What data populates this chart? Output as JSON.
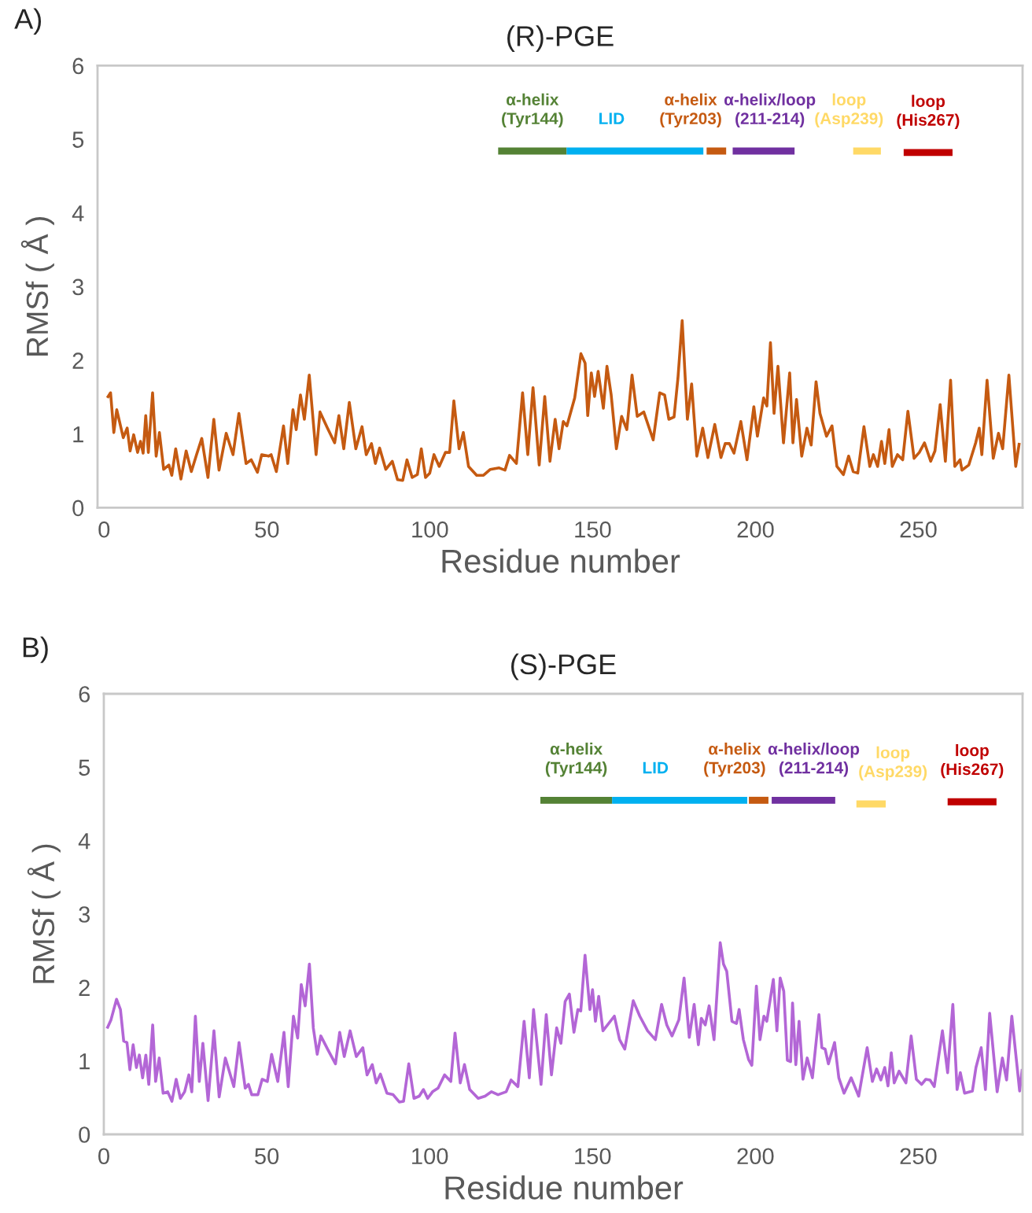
{
  "chart_data": [
    {
      "type": "line",
      "title": "(R)-PGE",
      "xlabel": "Residue number",
      "ylabel": "RMSf ( Å )",
      "annotations": [
        "A)"
      ],
      "xlim": [
        -2,
        282
      ],
      "ylim": [
        0,
        6
      ],
      "xticks": [
        0,
        50,
        100,
        150,
        200,
        250
      ],
      "yticks": [
        0,
        1,
        2,
        3,
        4,
        5,
        6
      ],
      "grid": false,
      "series": [
        {
          "color": "#c55a11",
          "x": [
            1,
            2,
            3,
            3.9,
            5.9,
            7.1,
            8.0,
            9.1,
            10.3,
            11.2,
            12.0,
            12.8,
            13.6,
            14.9,
            16.0,
            17.0,
            18.3,
            19.9,
            20.8,
            22.0,
            23.6,
            25.2,
            26.8,
            28.4,
            30.0,
            31.9,
            33.7,
            35.3,
            37.5,
            39.6,
            41.4,
            43.6,
            45.2,
            47.1,
            48.4,
            50.5,
            51.3,
            52.9,
            55.1,
            56.4,
            58.0,
            59.0,
            60.3,
            61.5,
            63.0,
            65.1,
            66.3,
            68.6,
            70.8,
            72.1,
            73.6,
            75.3,
            77.3,
            79.2,
            80.5,
            82.1,
            83.3,
            84.6,
            86.5,
            88.5,
            90.1,
            91.7,
            93.0,
            94.6,
            96.2,
            97.4,
            98.7,
            100.0,
            101.3,
            102.9,
            104.8,
            106.1,
            107.4,
            109.0,
            110.3,
            111.9,
            114.4,
            116.5,
            118.6,
            121.3,
            123.1,
            124.5,
            126.6,
            128.5,
            130.1,
            131.7,
            133.6,
            135.3,
            136.9,
            138.5,
            139.7,
            141.0,
            142.1,
            144.5,
            146.4,
            147.7,
            148.5,
            149.6,
            150.6,
            151.7,
            153.3,
            154.4,
            155.7,
            157.3,
            158.9,
            160.5,
            162.1,
            163.7,
            165.7,
            168.6,
            170.6,
            172.1,
            173.4,
            175.0,
            176.2,
            177.5,
            179.1,
            180.4,
            182.0,
            183.8,
            185.4,
            187.5,
            189.4,
            190.7,
            192.0,
            193.4,
            195.5,
            197.4,
            199.5,
            200.6,
            202.5,
            203.5,
            204.6,
            205.7,
            206.9,
            208.6,
            210.5,
            211.5,
            212.6,
            214.2,
            215.8,
            217.1,
            218.6,
            219.8,
            221.8,
            223.5,
            225.0,
            227.0,
            228.6,
            230.0,
            231.4,
            233.3,
            235.1,
            236.2,
            237.5,
            238.7,
            239.7,
            241.0,
            242.0,
            243.6,
            245.2,
            246.8,
            248.7,
            250.3,
            251.9,
            253.8,
            255.1,
            256.7,
            258.3,
            259.9,
            261.2,
            262.8,
            263.4,
            265.5,
            267.6,
            268.7,
            269.5,
            271.1,
            273.0,
            274.6,
            275.9,
            277.8,
            279.9,
            281.0
          ],
          "values": [
            1.49,
            1.56,
            1.02,
            1.33,
            0.95,
            1.08,
            0.77,
            0.99,
            0.75,
            0.9,
            0.74,
            1.25,
            0.75,
            1.56,
            0.7,
            1.02,
            0.52,
            0.58,
            0.44,
            0.8,
            0.39,
            0.77,
            0.49,
            0.72,
            0.94,
            0.41,
            1.2,
            0.51,
            1.01,
            0.72,
            1.28,
            0.6,
            0.65,
            0.48,
            0.72,
            0.7,
            0.72,
            0.49,
            1.11,
            0.6,
            1.33,
            1.06,
            1.53,
            1.2,
            1.8,
            0.72,
            1.3,
            1.08,
            0.88,
            1.25,
            0.8,
            1.43,
            0.8,
            1.1,
            0.72,
            0.87,
            0.6,
            0.81,
            0.52,
            0.63,
            0.38,
            0.37,
            0.65,
            0.41,
            0.45,
            0.8,
            0.41,
            0.47,
            0.72,
            0.56,
            0.75,
            0.75,
            1.45,
            0.8,
            1.02,
            0.56,
            0.44,
            0.44,
            0.52,
            0.54,
            0.51,
            0.71,
            0.6,
            1.56,
            0.72,
            1.63,
            0.58,
            1.51,
            0.63,
            1.2,
            0.8,
            1.17,
            1.11,
            1.49,
            2.09,
            1.96,
            1.25,
            1.83,
            1.51,
            1.85,
            1.35,
            1.92,
            1.53,
            0.8,
            1.24,
            1.06,
            1.8,
            1.24,
            1.3,
            0.92,
            1.56,
            1.53,
            1.2,
            1.23,
            1.76,
            2.54,
            1.2,
            1.68,
            0.7,
            1.08,
            0.68,
            1.13,
            0.68,
            0.87,
            0.87,
            0.74,
            1.17,
            0.65,
            1.37,
            0.97,
            1.49,
            1.38,
            2.24,
            1.28,
            1.92,
            0.88,
            1.83,
            0.88,
            1.47,
            0.7,
            1.08,
            0.85,
            1.71,
            1.28,
            0.97,
            1.11,
            0.56,
            0.45,
            0.7,
            0.49,
            0.47,
            1.1,
            0.56,
            0.72,
            0.56,
            0.9,
            0.6,
            1.06,
            0.56,
            0.72,
            0.65,
            1.31,
            0.67,
            0.75,
            0.88,
            0.63,
            0.77,
            1.4,
            0.63,
            1.73,
            0.56,
            0.65,
            0.51,
            0.58,
            0.88,
            1.08,
            0.72,
            1.73,
            0.67,
            1.01,
            0.8,
            1.8,
            0.56,
            0.88
          ]
        },
        {
          "name": "α-helix\n(Tyr144)",
          "color": "#548235",
          "x": [
            121,
            142
          ],
          "values": [
            4.84,
            4.84
          ]
        },
        {
          "name": "LID",
          "color": "#00b0f0",
          "x": [
            142,
            184
          ],
          "values": [
            4.84,
            4.84
          ]
        },
        {
          "name": "α-helix\n(Tyr203)",
          "color": "#c55a11",
          "x": [
            185,
            191
          ],
          "values": [
            4.84,
            4.84
          ]
        },
        {
          "name": "α-helix/loop\n(211-214)",
          "color": "#7030a0",
          "x": [
            193,
            212
          ],
          "values": [
            4.84,
            4.84
          ]
        },
        {
          "name": "loop\n(Asp239)",
          "color": "#ffd966",
          "x": [
            230,
            238.5
          ],
          "values": [
            4.84,
            4.84
          ]
        },
        {
          "name": "loop\n(His267)",
          "color": "#c00000",
          "x": [
            245.5,
            260.5
          ],
          "values": [
            4.82,
            4.82
          ]
        }
      ]
    },
    {
      "type": "line",
      "title": "(S)-PGE",
      "xlabel": "Residue number",
      "ylabel": "RMSf ( Å )",
      "annotations": [
        "B)"
      ],
      "xlim": [
        0,
        282
      ],
      "ylim": [
        0,
        6
      ],
      "xticks": [
        0,
        50,
        100,
        150,
        200,
        250
      ],
      "yticks": [
        0,
        1,
        2,
        3,
        4,
        5,
        6
      ],
      "grid": false,
      "series": [
        {
          "color": "#b366d6",
          "x": [
            1,
            2.2,
            3.9,
            5.1,
            6.1,
            7.1,
            8.0,
            9.0,
            10.0,
            10.9,
            11.9,
            12.9,
            13.8,
            15.0,
            15.9,
            17.0,
            18.2,
            19.6,
            20.9,
            22.2,
            23.5,
            24.8,
            26.1,
            27.0,
            28.1,
            29.3,
            30.4,
            32.0,
            33.8,
            35.4,
            37.3,
            39.9,
            41.5,
            43.4,
            44.4,
            45.4,
            47.3,
            48.6,
            50.2,
            51.5,
            53.4,
            55.3,
            56.6,
            58.2,
            59.5,
            60.6,
            61.8,
            63.1,
            64.3,
            65.5,
            66.6,
            68.8,
            71.1,
            72.4,
            73.8,
            75.6,
            77.5,
            79.5,
            80.8,
            82.4,
            83.6,
            84.9,
            86.9,
            88.8,
            90.7,
            92.0,
            93.6,
            95.2,
            96.8,
            98.1,
            99.4,
            100.9,
            102.6,
            104.6,
            106.5,
            107.8,
            109.4,
            110.7,
            112.3,
            114.9,
            117.0,
            119.0,
            121.0,
            123.5,
            125.0,
            127.1,
            129.0,
            130.6,
            131.9,
            134.2,
            135.8,
            137.4,
            139.0,
            140.3,
            141.6,
            142.9,
            144.3,
            145.5,
            146.4,
            147.7,
            149.2,
            150.0,
            150.9,
            151.9,
            153.2,
            156.7,
            158.3,
            159.9,
            162.5,
            164.5,
            166.9,
            169.3,
            171.2,
            172.8,
            174.4,
            176.5,
            178.1,
            179.7,
            181.2,
            182.5,
            183.4,
            184.6,
            185.8,
            187.3,
            189.2,
            190.2,
            191.2,
            192.8,
            194.2,
            195.0,
            196.3,
            197.9,
            198.9,
            200.3,
            201.4,
            202.6,
            203.5,
            205.5,
            206.6,
            207.6,
            208.7,
            209.8,
            210.8,
            211.4,
            212.4,
            213.4,
            214.6,
            215.9,
            217.5,
            219.5,
            220.4,
            221.4,
            222.4,
            224.3,
            225.6,
            227.2,
            229.4,
            231.7,
            234.3,
            235.9,
            237.2,
            238.5,
            239.7,
            240.7,
            241.7,
            242.6,
            244.1,
            246.2,
            247.8,
            249.4,
            251.0,
            252.3,
            253.6,
            254.9,
            257.4,
            259.0,
            260.6,
            261.9,
            262.9,
            264.2,
            266.6,
            267.7,
            269.3,
            270.6,
            271.9,
            274.2,
            275.8,
            277.1,
            278.7,
            281.1,
            281.9
          ],
          "values": [
            1.44,
            1.56,
            1.84,
            1.7,
            1.27,
            1.25,
            0.88,
            1.22,
            0.91,
            1.08,
            0.77,
            1.08,
            0.68,
            1.49,
            0.72,
            1.04,
            0.56,
            0.58,
            0.45,
            0.75,
            0.49,
            0.58,
            0.81,
            0.58,
            1.61,
            0.72,
            1.24,
            0.46,
            1.41,
            0.51,
            1.04,
            0.65,
            1.25,
            0.63,
            0.68,
            0.54,
            0.54,
            0.75,
            0.72,
            1.09,
            0.72,
            1.39,
            0.65,
            1.61,
            1.31,
            2.04,
            1.75,
            2.32,
            1.45,
            1.09,
            1.34,
            1.15,
            0.96,
            1.39,
            1.06,
            1.41,
            1.06,
            1.18,
            0.81,
            0.95,
            0.7,
            0.82,
            0.56,
            0.54,
            0.44,
            0.45,
            0.96,
            0.49,
            0.52,
            0.61,
            0.49,
            0.58,
            0.63,
            0.81,
            0.72,
            1.38,
            0.7,
            0.95,
            0.61,
            0.49,
            0.52,
            0.58,
            0.54,
            0.58,
            0.74,
            0.65,
            1.54,
            0.77,
            1.7,
            0.68,
            1.63,
            0.81,
            1.45,
            1.24,
            1.81,
            1.91,
            1.39,
            1.7,
            1.68,
            2.44,
            1.7,
            1.97,
            1.54,
            1.88,
            1.41,
            1.61,
            1.29,
            1.16,
            1.82,
            1.61,
            1.41,
            1.29,
            1.77,
            1.49,
            1.34,
            1.56,
            2.13,
            1.32,
            1.77,
            1.22,
            1.58,
            1.49,
            1.75,
            1.29,
            2.61,
            2.32,
            2.22,
            1.54,
            1.51,
            1.7,
            1.29,
            1.02,
            0.94,
            2.02,
            1.29,
            1.61,
            1.54,
            2.11,
            1.41,
            2.13,
            1.95,
            1.01,
            0.99,
            1.79,
            0.95,
            1.54,
            0.75,
            1.04,
            0.77,
            1.63,
            1.18,
            1.16,
            0.96,
            1.25,
            0.77,
            0.56,
            0.77,
            0.52,
            1.18,
            0.72,
            0.89,
            0.74,
            0.91,
            0.66,
            1.11,
            0.7,
            0.86,
            0.7,
            1.34,
            0.75,
            0.68,
            0.75,
            0.74,
            0.65,
            1.41,
            0.84,
            1.77,
            0.61,
            0.84,
            0.56,
            0.59,
            0.91,
            1.18,
            0.61,
            1.65,
            0.58,
            1.04,
            0.74,
            1.61,
            0.59,
            0.89
          ]
        },
        {
          "name": "α-helix\n(Tyr144)",
          "color": "#548235",
          "x": [
            134,
            156
          ],
          "values": [
            4.55,
            4.55
          ]
        },
        {
          "name": "LID",
          "color": "#00b0f0",
          "x": [
            156,
            197.5
          ],
          "values": [
            4.55,
            4.55
          ]
        },
        {
          "name": "α-helix\n(Tyr203)",
          "color": "#c55a11",
          "x": [
            198,
            204
          ],
          "values": [
            4.55,
            4.55
          ]
        },
        {
          "name": "α-helix/loop\n(211-214)",
          "color": "#7030a0",
          "x": [
            205,
            224.5
          ],
          "values": [
            4.55,
            4.55
          ]
        },
        {
          "name": "loop\n(Asp239)",
          "color": "#ffd966",
          "x": [
            231,
            240
          ],
          "values": [
            4.5,
            4.5
          ]
        },
        {
          "name": "loop\n(His267)",
          "color": "#c00000",
          "x": [
            259,
            274
          ],
          "values": [
            4.53,
            4.53
          ]
        }
      ]
    }
  ]
}
